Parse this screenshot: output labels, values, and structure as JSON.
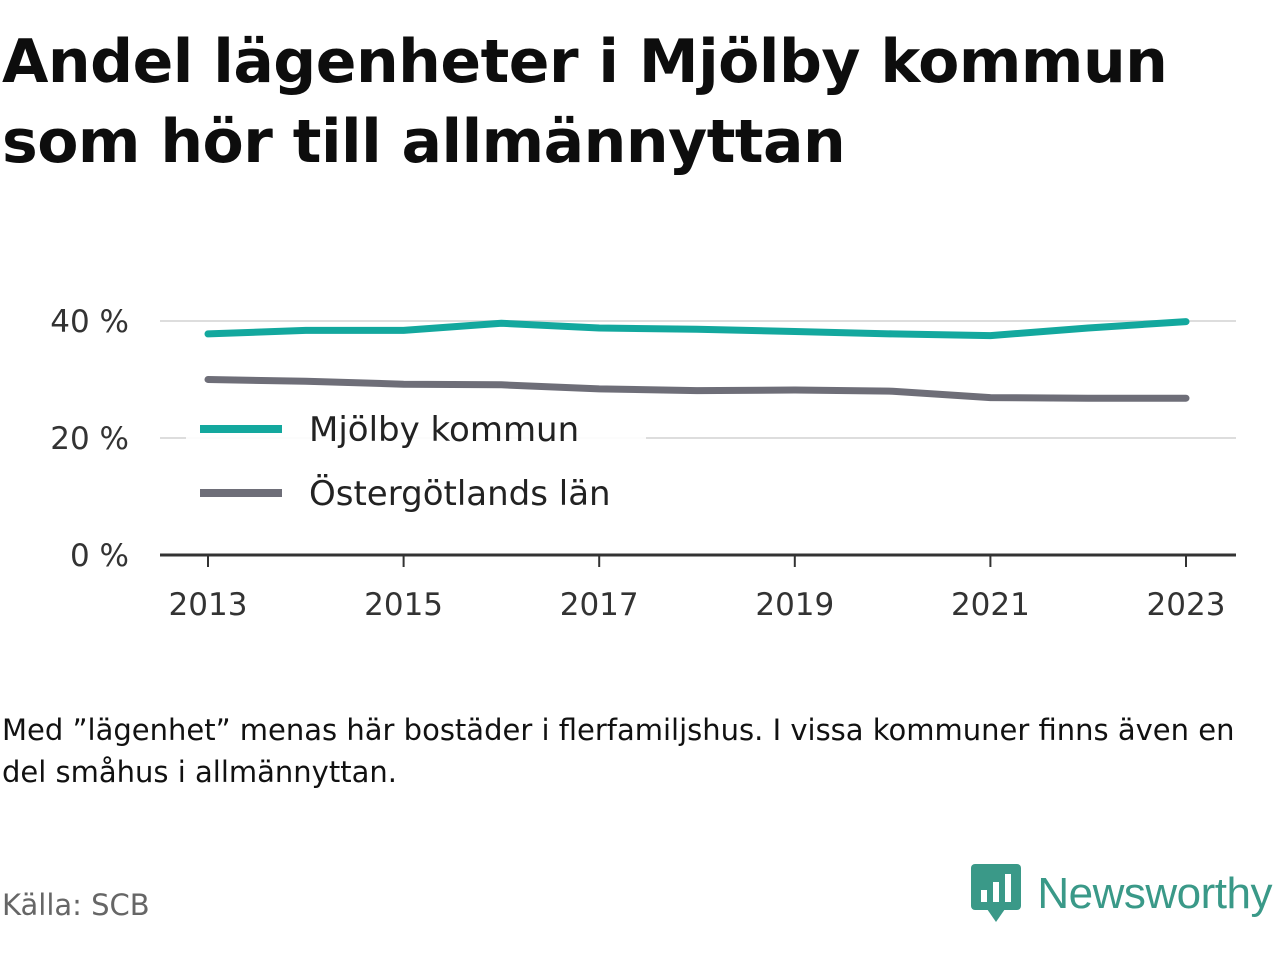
{
  "title": "Andel lägenheter i Mjölby kommun som hör till allmännyttan",
  "note": "Med ”lägenhet” menas här bostäder i flerfamiljshus. I vissa kommuner finns även en del småhus i allmännyttan.",
  "source": "Källa: SCB",
  "brand": {
    "name": "Newsworthy",
    "icon": "newsworthy-logo-icon",
    "color": "#3a9988"
  },
  "chart_data": {
    "type": "line",
    "x": [
      2013,
      2014,
      2015,
      2016,
      2017,
      2018,
      2019,
      2020,
      2021,
      2022,
      2023
    ],
    "series": [
      {
        "name": "Mjölby kommun",
        "color": "#13a89e",
        "values": [
          37.8,
          38.4,
          38.4,
          39.6,
          38.8,
          38.6,
          38.2,
          37.8,
          37.5,
          38.8,
          39.9
        ]
      },
      {
        "name": "Östergötlands län",
        "color": "#6e6e78",
        "values": [
          30.0,
          29.7,
          29.2,
          29.1,
          28.4,
          28.1,
          28.2,
          28.0,
          26.9,
          26.8,
          26.8
        ]
      }
    ],
    "ylim": [
      0,
      40
    ],
    "yticks": [
      0,
      20,
      40
    ],
    "ytick_labels": [
      "0 %",
      "20 %",
      "40 %"
    ],
    "xticks": [
      2013,
      2015,
      2017,
      2019,
      2021,
      2023
    ],
    "xtick_labels": [
      "2013",
      "2015",
      "2017",
      "2019",
      "2021",
      "2023"
    ],
    "grid": "horizontal",
    "legend_position": "inside-left"
  }
}
